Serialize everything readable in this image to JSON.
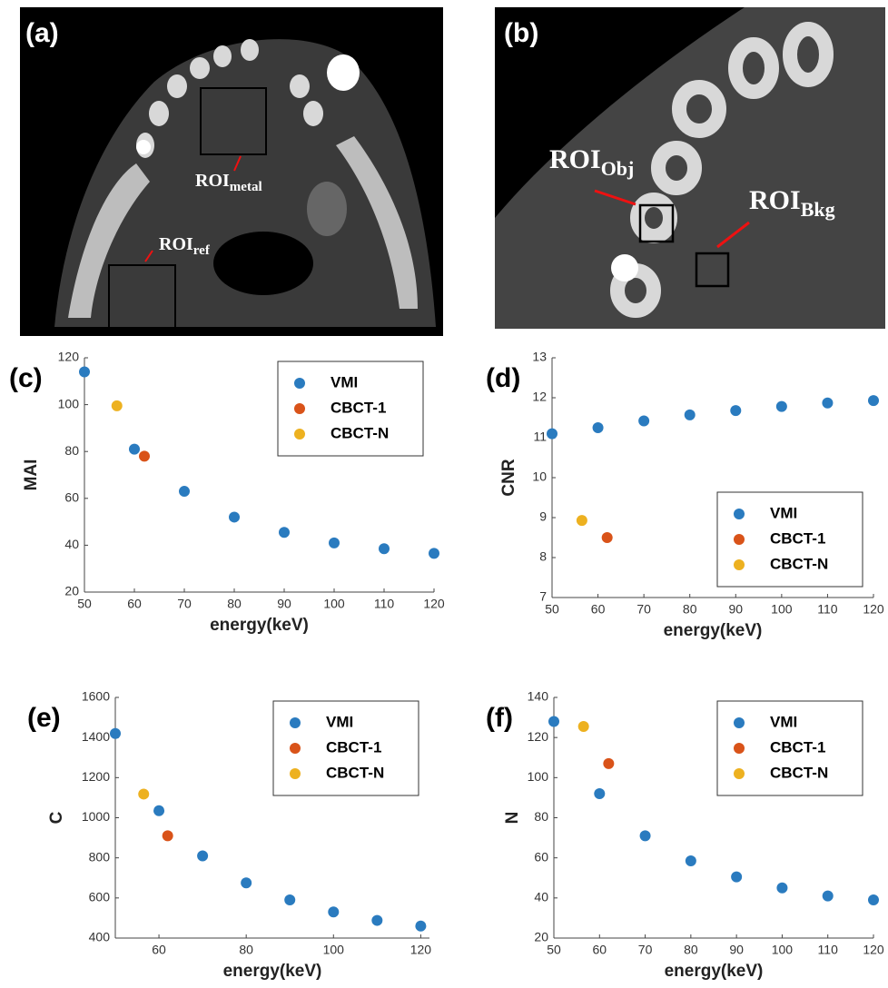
{
  "images": [
    {
      "label": "(a)",
      "rois": [
        {
          "main": "ROI",
          "sub": "metal"
        },
        {
          "main": "ROI",
          "sub": "ref"
        }
      ]
    },
    {
      "label": "(b)",
      "rois": [
        {
          "main": "ROI",
          "sub": "Obj"
        },
        {
          "main": "ROI",
          "sub": "Bkg"
        }
      ]
    }
  ],
  "chart_data": [
    {
      "type": "scatter",
      "label": "(c)",
      "xlabel": "energy(keV)",
      "ylabel": "MAI",
      "xlim": [
        50,
        120
      ],
      "xticks": [
        50,
        60,
        70,
        80,
        90,
        100,
        110,
        120
      ],
      "ylim": [
        20,
        120
      ],
      "yticks": [
        20,
        40,
        60,
        80,
        100,
        120
      ],
      "legend": "upper right",
      "series": [
        {
          "name": "VMI",
          "color": "#2a7bbf",
          "x": [
            50,
            60,
            70,
            80,
            90,
            100,
            110,
            120
          ],
          "values": [
            114,
            81,
            63,
            52,
            45.5,
            41,
            38.5,
            36.5
          ]
        },
        {
          "name": "CBCT-1",
          "color": "#d95319",
          "x": [
            62
          ],
          "values": [
            78
          ]
        },
        {
          "name": "CBCT-N",
          "color": "#edb120",
          "x": [
            56.5
          ],
          "values": [
            99.5
          ]
        }
      ]
    },
    {
      "type": "scatter",
      "label": "(d)",
      "xlabel": "energy(keV)",
      "ylabel": "CNR",
      "xlim": [
        50,
        120
      ],
      "xticks": [
        50,
        60,
        70,
        80,
        90,
        100,
        110,
        120
      ],
      "ylim": [
        7,
        13
      ],
      "yticks": [
        7,
        8,
        9,
        10,
        11,
        12,
        13
      ],
      "legend": "lower right",
      "series": [
        {
          "name": "VMI",
          "color": "#2a7bbf",
          "x": [
            50,
            60,
            70,
            80,
            90,
            100,
            110,
            120
          ],
          "values": [
            11.1,
            11.25,
            11.42,
            11.57,
            11.68,
            11.78,
            11.87,
            11.93
          ]
        },
        {
          "name": "CBCT-1",
          "color": "#d95319",
          "x": [
            62
          ],
          "values": [
            8.5
          ]
        },
        {
          "name": "CBCT-N",
          "color": "#edb120",
          "x": [
            56.5
          ],
          "values": [
            8.93
          ]
        }
      ]
    },
    {
      "type": "scatter",
      "label": "(e)",
      "xlabel": "energy(keV)",
      "ylabel": "C",
      "xlim": [
        50,
        122
      ],
      "xticks": [
        60,
        80,
        100,
        120
      ],
      "ylim": [
        400,
        1600
      ],
      "yticks": [
        400,
        600,
        800,
        1000,
        1200,
        1400,
        1600
      ],
      "legend": "upper right",
      "series": [
        {
          "name": "VMI",
          "color": "#2a7bbf",
          "x": [
            50,
            60,
            70,
            80,
            90,
            100,
            110,
            120
          ],
          "values": [
            1420,
            1035,
            810,
            675,
            590,
            530,
            488,
            460
          ]
        },
        {
          "name": "CBCT-1",
          "color": "#d95319",
          "x": [
            62
          ],
          "values": [
            910
          ]
        },
        {
          "name": "CBCT-N",
          "color": "#edb120",
          "x": [
            56.5
          ],
          "values": [
            1118
          ]
        }
      ]
    },
    {
      "type": "scatter",
      "label": "(f)",
      "xlabel": "energy(keV)",
      "ylabel": "N",
      "xlim": [
        50,
        120
      ],
      "xticks": [
        50,
        60,
        70,
        80,
        90,
        100,
        110,
        120
      ],
      "ylim": [
        20,
        140
      ],
      "yticks": [
        20,
        40,
        60,
        80,
        100,
        120,
        140
      ],
      "legend": "upper right",
      "series": [
        {
          "name": "VMI",
          "color": "#2a7bbf",
          "x": [
            50,
            60,
            70,
            80,
            90,
            100,
            110,
            120
          ],
          "values": [
            128,
            92,
            71,
            58.5,
            50.5,
            45,
            41,
            39
          ]
        },
        {
          "name": "CBCT-1",
          "color": "#d95319",
          "x": [
            62
          ],
          "values": [
            107
          ]
        },
        {
          "name": "CBCT-N",
          "color": "#edb120",
          "x": [
            56.5
          ],
          "values": [
            125.5
          ]
        }
      ]
    }
  ]
}
